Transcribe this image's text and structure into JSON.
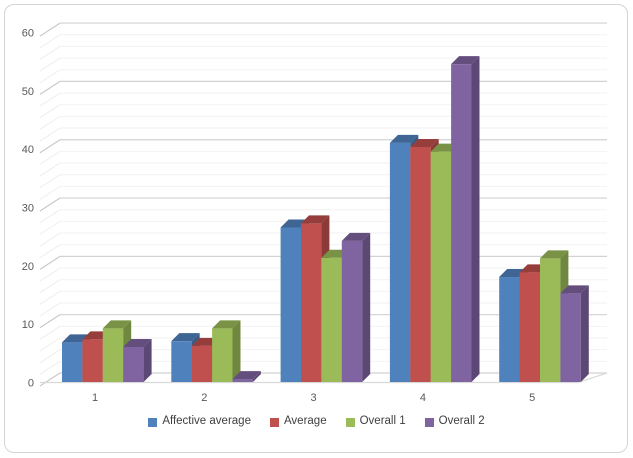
{
  "card": {
    "background": "#ffffff",
    "border_color": "#d4d4d4"
  },
  "chart_data": {
    "type": "bar",
    "style": "3d-clustered-column",
    "title": "",
    "xlabel": "",
    "ylabel": "",
    "categories": [
      "1",
      "2",
      "3",
      "4",
      "5"
    ],
    "series": [
      {
        "name": "Affective average",
        "color": "#4F81BD",
        "values": [
          6.8,
          7.0,
          26.5,
          41.0,
          18.0
        ]
      },
      {
        "name": "Average",
        "color": "#C0504D",
        "values": [
          7.3,
          6.2,
          27.2,
          40.3,
          18.8
        ]
      },
      {
        "name": "Overall 1",
        "color": "#9BBB59",
        "values": [
          9.2,
          9.2,
          21.3,
          39.5,
          21.2
        ]
      },
      {
        "name": "Overall 2",
        "color": "#8064A2",
        "values": [
          6.0,
          0.5,
          24.2,
          54.5,
          15.2
        ]
      }
    ],
    "ylim": [
      0,
      60
    ],
    "y_major_ticks": [
      0,
      10,
      20,
      30,
      40,
      50,
      60
    ],
    "y_minor_step": 2,
    "grid": true,
    "legend_position": "bottom"
  },
  "axis_style": {
    "tick_label_color": "#595959",
    "category_label_color": "#595959",
    "major_grid_color": "#d2d2d2",
    "minor_grid_color": "#f2f2f2",
    "major_stub_color": "#c9c9c9",
    "minor_stub_color": "#eeeeee",
    "floor_line_color": "#d9d9d9"
  },
  "legend_style": {
    "text_color": "#3f3f3f"
  }
}
